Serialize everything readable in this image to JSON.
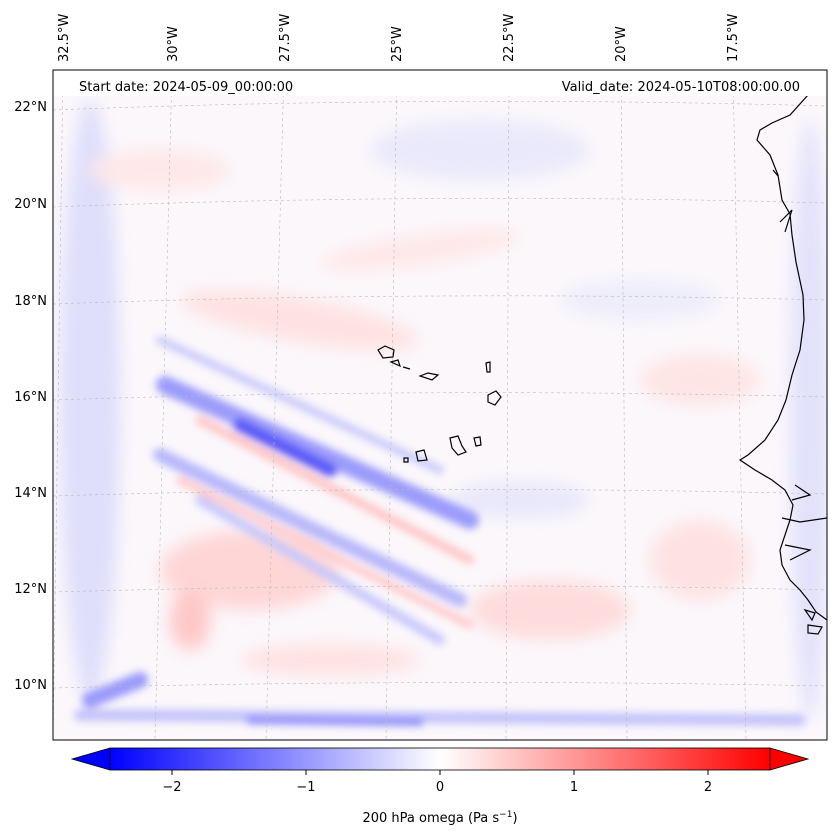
{
  "header": {
    "start_date": "Start date: 2024-05-09_00:00:00",
    "valid_date": "Valid_date: 2024-05-10T08:00:00.00"
  },
  "axes": {
    "longitude_labels": [
      "32.5°W",
      "30°W",
      "27.5°W",
      "25°W",
      "22.5°W",
      "20°W",
      "17.5°W"
    ],
    "latitude_labels": [
      "22°N",
      "20°N",
      "18°N",
      "16°N",
      "14°N",
      "12°N",
      "10°N"
    ]
  },
  "colorbar": {
    "ticks": [
      "−2",
      "−1",
      "0",
      "1",
      "2"
    ],
    "label": "200 hPa omega (Pa s",
    "label_exp": "−1",
    "label_close": ")",
    "min": -2.6,
    "max": 2.6,
    "low_color": "#0000ff",
    "mid_color": "#ffffff",
    "high_color": "#ff0000"
  },
  "colors": {
    "coastline": "#000000",
    "gridline": "#bbbbbb"
  }
}
